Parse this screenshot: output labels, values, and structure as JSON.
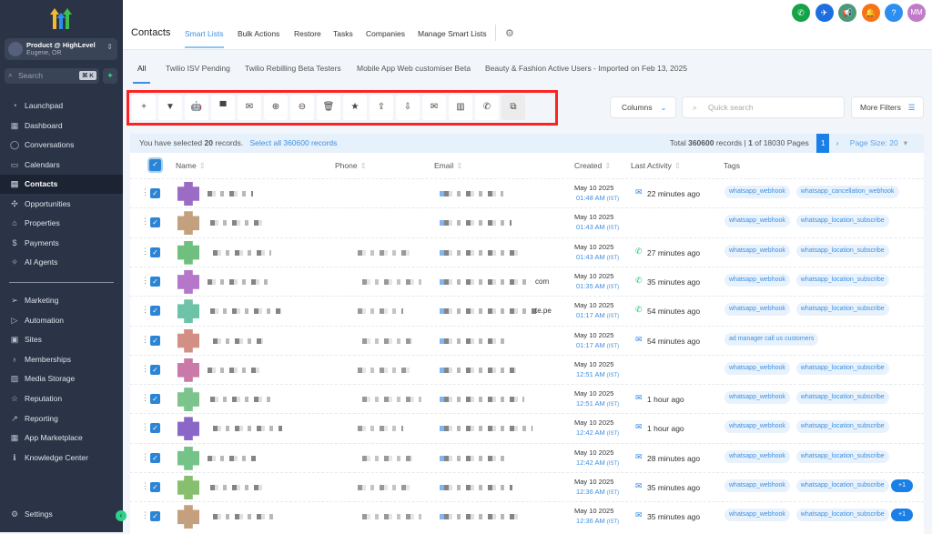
{
  "sidebar": {
    "account_name": "Product @ HighLevel",
    "account_location": "Eugene, OR",
    "search_placeholder": "Search",
    "search_shortcut": "⌘ K",
    "items": [
      {
        "label": "Launchpad",
        "icon": "◔"
      },
      {
        "label": "Dashboard",
        "icon": "▦"
      },
      {
        "label": "Conversations",
        "icon": "◯"
      },
      {
        "label": "Calendars",
        "icon": "▭"
      },
      {
        "label": "Contacts",
        "icon": "▤",
        "active": true
      },
      {
        "label": "Opportunities",
        "icon": "✣"
      },
      {
        "label": "Properties",
        "icon": "⌂"
      },
      {
        "label": "Payments",
        "icon": "$"
      },
      {
        "label": "AI Agents",
        "icon": "✧"
      }
    ],
    "items2": [
      {
        "label": "Marketing",
        "icon": "➢"
      },
      {
        "label": "Automation",
        "icon": "▷"
      },
      {
        "label": "Sites",
        "icon": "▣"
      },
      {
        "label": "Memberships",
        "icon": "♁"
      },
      {
        "label": "Media Storage",
        "icon": "▨"
      },
      {
        "label": "Reputation",
        "icon": "☆"
      },
      {
        "label": "Reporting",
        "icon": "↗"
      },
      {
        "label": "App Marketplace",
        "icon": "▦"
      },
      {
        "label": "Knowledge Center",
        "icon": "ℹ"
      }
    ],
    "settings": "Settings"
  },
  "header": {
    "title": "Contacts",
    "tabs": [
      "Smart Lists",
      "Bulk Actions",
      "Restore",
      "Tasks",
      "Companies",
      "Manage Smart Lists"
    ],
    "icons": [
      {
        "name": "phone",
        "color": "#15a34a",
        "glyph": "✆"
      },
      {
        "name": "satellite",
        "color": "#1d6fe0",
        "glyph": "✈"
      },
      {
        "name": "megaphone",
        "color": "#4b9b78",
        "glyph": "📢"
      },
      {
        "name": "bell",
        "color": "#f97316",
        "glyph": "🔔"
      },
      {
        "name": "help",
        "color": "#2b8ef0",
        "glyph": "?"
      }
    ],
    "avatar": "MM"
  },
  "smart_lists": [
    "All",
    "Twilio ISV Pending",
    "Twilio Rebilling Beta Testers",
    "Mobile App Web customiser Beta",
    "Beauty & Fashion Active Users - Imported on Feb 13, 2025"
  ],
  "toolbar": [
    "add",
    "filter",
    "workflow-bot",
    "sms",
    "email",
    "add-tag",
    "remove-tag",
    "delete",
    "star",
    "export",
    "import",
    "review-request",
    "company",
    "whatsapp",
    "merge"
  ],
  "toolbar_glyphs": [
    "+",
    "▼",
    "🤖",
    "▀",
    "✉",
    "⊕",
    "⊖",
    "🗑",
    "★",
    "⇪",
    "⇩",
    "✉",
    "▥",
    "✆",
    "⧉"
  ],
  "columns_label": "Columns",
  "quick_search_placeholder": "Quick search",
  "more_filters": "More Filters",
  "selection": {
    "prefix": "You have selected",
    "count": "20",
    "suffix": "records.",
    "select_all": "Select all 360600 records"
  },
  "pagination": {
    "total_prefix": "Total",
    "total": "360600",
    "mid": "records |",
    "page": "1",
    "of": "of 18030 Pages",
    "current": "1",
    "page_size": "Page Size: 20"
  },
  "table": {
    "headers": [
      "Name",
      "Phone",
      "Email",
      "Created",
      "Last Activity",
      "Tags"
    ],
    "rows": [
      {
        "avatar": "#9b6cc4",
        "email_tail": "",
        "date": "May 10 2025",
        "time": "01:48 AM",
        "tz": "(IST)",
        "activity_icon": "email",
        "activity": "22 minutes ago",
        "tags": [
          "whatsapp_webhook",
          "whatsapp_cancellation_webhook"
        ]
      },
      {
        "avatar": "#c4a07e",
        "email_tail": "",
        "date": "May 10 2025",
        "time": "01:43 AM",
        "tz": "(IST)",
        "activity_icon": "",
        "activity": "",
        "tags": [
          "whatsapp_webhook",
          "whatsapp_location_subscribe"
        ]
      },
      {
        "avatar": "#6fbf7f",
        "email_tail": "",
        "date": "May 10 2025",
        "time": "01:43 AM",
        "tz": "(IST)",
        "activity_icon": "whatsapp",
        "activity": "27 minutes ago",
        "tags": [
          "whatsapp_webhook",
          "whatsapp_location_subscribe"
        ]
      },
      {
        "avatar": "#b477c9",
        "email_tail": "com",
        "date": "May 10 2025",
        "time": "01:35 AM",
        "tz": "(IST)",
        "activity_icon": "whatsapp",
        "activity": "35 minutes ago",
        "tags": [
          "whatsapp_webhook",
          "whatsapp_location_subscribe"
        ]
      },
      {
        "avatar": "#6cc3a8",
        "email_tail": "te.pe",
        "date": "May 10 2025",
        "time": "01:17 AM",
        "tz": "(IST)",
        "activity_icon": "whatsapp",
        "activity": "54 minutes ago",
        "tags": [
          "whatsapp_webhook",
          "whatsapp_location_subscribe"
        ]
      },
      {
        "avatar": "#d48f84",
        "email_tail": "",
        "date": "May 10 2025",
        "time": "01:17 AM",
        "tz": "(IST)",
        "activity_icon": "email",
        "activity": "54 minutes ago",
        "tags": [
          "ad manager call us customers"
        ]
      },
      {
        "avatar": "#c97aa8",
        "email_tail": "",
        "date": "May 10 2025",
        "time": "12:51 AM",
        "tz": "(IST)",
        "activity_icon": "",
        "activity": "",
        "tags": [
          "whatsapp_webhook",
          "whatsapp_location_subscribe"
        ]
      },
      {
        "avatar": "#7cc48c",
        "email_tail": "",
        "date": "May 10 2025",
        "time": "12:51 AM",
        "tz": "(IST)",
        "activity_icon": "email",
        "activity": "1 hour ago",
        "tags": [
          "whatsapp_webhook",
          "whatsapp_location_subscribe"
        ]
      },
      {
        "avatar": "#8b68c8",
        "email_tail": "",
        "date": "May 10 2025",
        "time": "12:42 AM",
        "tz": "(IST)",
        "activity_icon": "email",
        "activity": "1 hour ago",
        "tags": [
          "whatsapp_webhook",
          "whatsapp_location_subscribe"
        ]
      },
      {
        "avatar": "#74c48a",
        "email_tail": "",
        "date": "May 10 2025",
        "time": "12:42 AM",
        "tz": "(IST)",
        "activity_icon": "email",
        "activity": "28 minutes ago",
        "tags": [
          "whatsapp_webhook",
          "whatsapp_location_subscribe"
        ]
      },
      {
        "avatar": "#86c06e",
        "email_tail": "",
        "date": "May 10 2025",
        "time": "12:36 AM",
        "tz": "(IST)",
        "activity_icon": "email",
        "activity": "35 minutes ago",
        "tags": [
          "whatsapp_webhook",
          "whatsapp_location_subscribe"
        ],
        "more": "+1"
      },
      {
        "avatar": "#c4a07e",
        "email_tail": "",
        "date": "May 10 2025",
        "time": "12:36 AM",
        "tz": "(IST)",
        "activity_icon": "email",
        "activity": "35 minutes ago",
        "tags": [
          "whatsapp_webhook",
          "whatsapp_location_subscribe"
        ],
        "more": "+1"
      }
    ]
  }
}
